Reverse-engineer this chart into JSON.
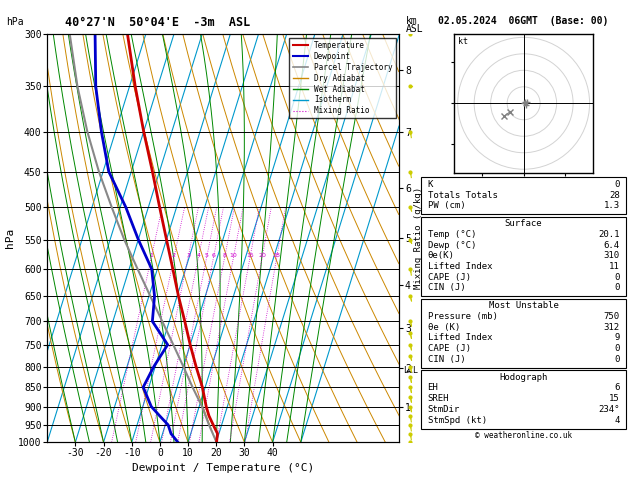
{
  "title": "40°27'N  50°04'E  -3m  ASL",
  "title_right": "02.05.2024  06GMT  (Base: 00)",
  "xlabel": "Dewpoint / Temperature (°C)",
  "ylabel_left": "hPa",
  "ylabel_right2": "Mixing Ratio (g/kg)",
  "pressure_levels": [
    300,
    350,
    400,
    450,
    500,
    550,
    600,
    650,
    700,
    750,
    800,
    850,
    900,
    950,
    1000
  ],
  "pressure_labels": [
    "300",
    "350",
    "400",
    "450",
    "500",
    "550",
    "600",
    "650",
    "700",
    "750",
    "800",
    "850",
    "900",
    "950",
    "1000"
  ],
  "temp_axis_min": -40,
  "temp_axis_max": 40,
  "temp_ticks": [
    -30,
    -20,
    -10,
    0,
    10,
    20,
    30,
    40
  ],
  "skew_amount": 45.0,
  "temp_profile_pressure": [
    1000,
    975,
    950,
    925,
    900,
    850,
    800,
    750,
    700,
    650,
    600,
    550,
    500,
    450,
    400,
    350,
    300
  ],
  "temp_profile_temp": [
    20.1,
    19.5,
    17.0,
    14.5,
    12.5,
    9.0,
    4.5,
    0.0,
    -4.5,
    -9.5,
    -14.5,
    -20.0,
    -26.0,
    -32.5,
    -40.0,
    -48.0,
    -56.5
  ],
  "dewp_profile_pressure": [
    1000,
    975,
    950,
    925,
    900,
    850,
    800,
    750,
    700,
    650,
    600,
    550,
    500,
    450,
    400,
    350,
    300
  ],
  "dewp_profile_temp": [
    6.4,
    3.0,
    1.0,
    -3.0,
    -7.0,
    -12.0,
    -10.5,
    -8.0,
    -16.0,
    -18.0,
    -22.0,
    -30.0,
    -38.0,
    -48.0,
    -55.0,
    -62.0,
    -68.0
  ],
  "parcel_profile_pressure": [
    1000,
    950,
    900,
    850,
    800,
    750,
    700,
    650,
    600,
    550,
    500,
    450,
    400,
    350,
    300
  ],
  "parcel_profile_temp": [
    20.1,
    15.5,
    11.0,
    5.5,
    0.0,
    -6.0,
    -12.5,
    -19.5,
    -27.0,
    -35.0,
    -43.0,
    -51.5,
    -60.0,
    -68.5,
    -77.0
  ],
  "temp_color": "#cc0000",
  "dewp_color": "#0000cc",
  "parcel_color": "#888888",
  "dry_adiabat_color": "#cc8800",
  "wet_adiabat_color": "#008800",
  "isotherm_color": "#0099cc",
  "mixing_ratio_color": "#cc00cc",
  "lcl_pressure": 810,
  "km_ticks": [
    1,
    2,
    3,
    4,
    5,
    6,
    7,
    8
  ],
  "km_pressures": [
    900,
    804,
    714,
    628,
    548,
    472,
    401,
    334
  ],
  "mixing_ratio_lines": [
    1,
    2,
    3,
    4,
    5,
    6,
    8,
    10,
    15,
    20,
    28
  ],
  "wind_barb_pressures": [
    1000,
    975,
    950,
    925,
    900,
    875,
    850,
    825,
    800,
    775,
    750,
    725,
    700,
    650,
    600,
    550,
    500,
    450,
    400,
    350,
    300
  ],
  "wind_barb_u": [
    2,
    2,
    3,
    3,
    4,
    4,
    5,
    5,
    5,
    5,
    4,
    4,
    3,
    3,
    2,
    2,
    2,
    1,
    1,
    1,
    0
  ],
  "wind_barb_v": [
    -2,
    -2,
    -3,
    -3,
    -3,
    -3,
    -4,
    -4,
    -4,
    -3,
    -3,
    -3,
    -2,
    -2,
    -2,
    -1,
    -1,
    -1,
    -1,
    0,
    0
  ],
  "wind_color": "#cccc00",
  "stability_indices": {
    "K": "0",
    "Totals Totals": "28",
    "PW (cm)": "1.3"
  },
  "surface_info": {
    "Temp (°C)": "20.1",
    "Dewp (°C)": "6.4",
    "θe(K)": "310",
    "Lifted Index": "11",
    "CAPE (J)": "0",
    "CIN (J)": "0"
  },
  "most_unstable": {
    "Pressure (mb)": "750",
    "θe (K)": "312",
    "Lifted Index": "9",
    "CAPE (J)": "0",
    "CIN (J)": "0"
  },
  "hodograph_info": {
    "EH": "6",
    "SREH": "15",
    "StmDir": "234°",
    "StmSpd (kt)": "4"
  },
  "copyright": "© weatheronline.co.uk"
}
